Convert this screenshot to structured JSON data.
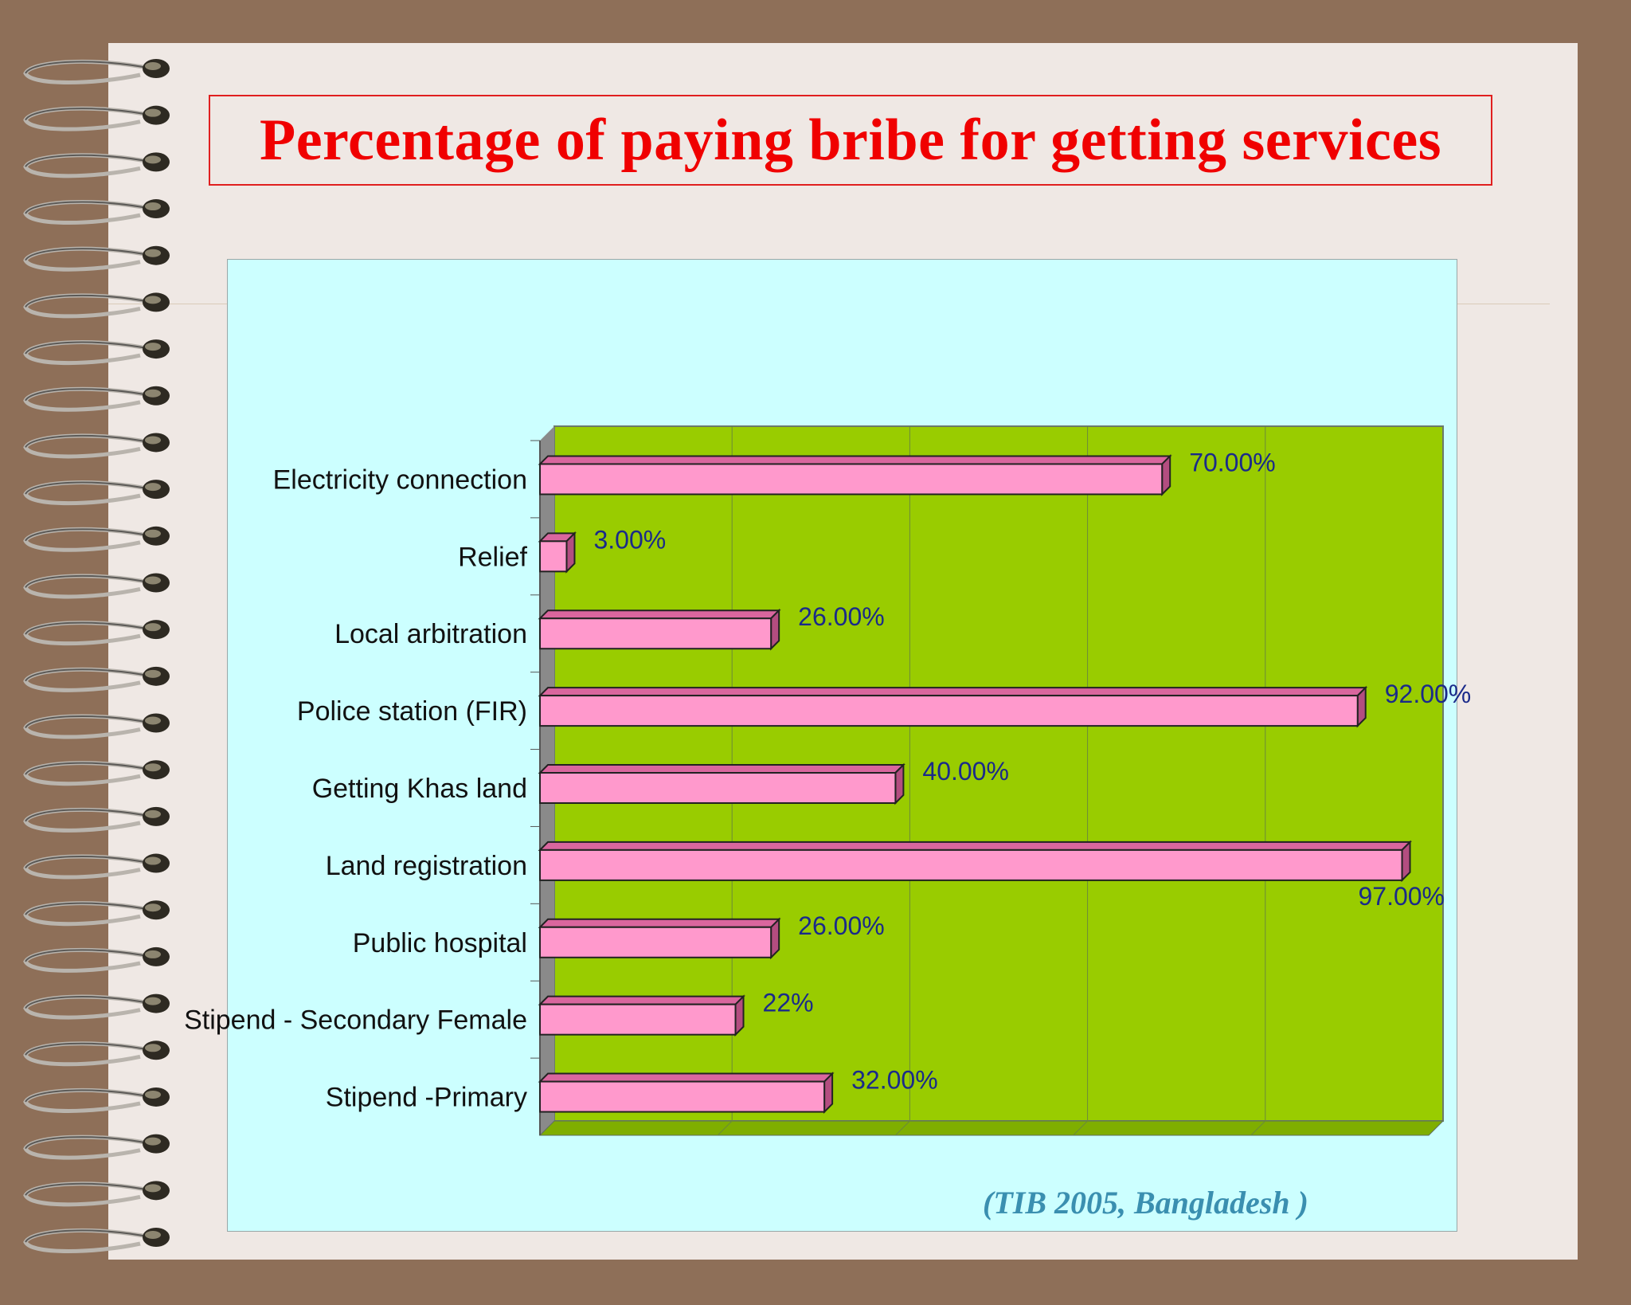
{
  "title": "Percentage of paying bribe for getting services",
  "source_note": "(TIB 2005,  Bangladesh )",
  "colors": {
    "background": "#8e6f58",
    "page": "#efe8e4",
    "title": "#f00000",
    "panel": "#ccffff",
    "plot_area": "#99cc00",
    "bar": "#ff99cc",
    "source": "#3a8fb0"
  },
  "chart_data": {
    "type": "bar",
    "orientation": "horizontal",
    "title": "Percentage of paying bribe for getting services",
    "categories": [
      "Electricity connection",
      "Relief",
      "Local arbitration",
      "Police station (FIR)",
      "Getting Khas land",
      "Land registration",
      "Public hospital",
      "Stipend - Secondary Female",
      "Stipend -Primary"
    ],
    "values": [
      70,
      3,
      26,
      92,
      40,
      97,
      26,
      22,
      32
    ],
    "data_labels": [
      "70.00%",
      "3.00%",
      "26.00%",
      "92.00%",
      "40.00%",
      "97.00%",
      "26.00%",
      "22%",
      "32.00%"
    ],
    "xlim": [
      0,
      100
    ],
    "grid": true,
    "legend": "none",
    "style": "3d"
  }
}
